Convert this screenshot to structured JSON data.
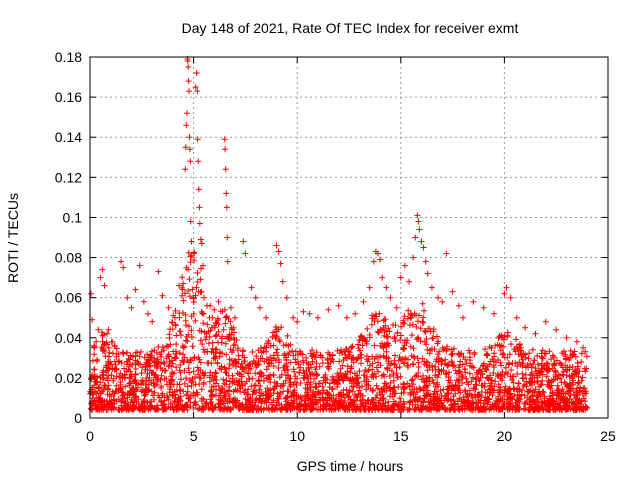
{
  "chart_data": {
    "type": "scatter",
    "title": "Day 148 of 2021, Rate Of TEC Index for receiver exmt",
    "xlabel": "GPS time / hours",
    "ylabel": "ROTI / TECUs",
    "xlim": [
      0,
      25
    ],
    "ylim": [
      0,
      0.18
    ],
    "x_ticks": [
      0,
      5,
      10,
      15,
      20,
      25
    ],
    "x_tick_labels": [
      "0",
      "5",
      "10",
      "15",
      "20",
      "25"
    ],
    "y_ticks": [
      0,
      0.02,
      0.04,
      0.06,
      0.08,
      0.1,
      0.12,
      0.14,
      0.16,
      0.18
    ],
    "y_tick_labels": [
      "0",
      "0.02",
      "0.04",
      "0.06",
      "0.08",
      "0.1",
      "0.12",
      "0.14",
      "0.16",
      "0.18"
    ],
    "grid": true,
    "marker": "+",
    "series": [
      {
        "name": "ROTI",
        "color": "#ff0000",
        "points": [
          [
            0.05,
            0.062
          ],
          [
            0.1,
            0.049
          ],
          [
            0.2,
            0.035
          ],
          [
            0.3,
            0.038
          ],
          [
            0.4,
            0.044
          ],
          [
            0.5,
            0.07
          ],
          [
            0.6,
            0.074
          ],
          [
            0.7,
            0.066
          ],
          [
            0.9,
            0.044
          ],
          [
            1.2,
            0.036
          ],
          [
            1.5,
            0.078
          ],
          [
            1.6,
            0.075
          ],
          [
            1.8,
            0.06
          ],
          [
            2.0,
            0.055
          ],
          [
            2.2,
            0.064
          ],
          [
            2.4,
            0.076
          ],
          [
            2.6,
            0.058
          ],
          [
            2.8,
            0.052
          ],
          [
            3.0,
            0.048
          ],
          [
            3.3,
            0.073
          ],
          [
            3.5,
            0.061
          ],
          [
            3.8,
            0.055
          ],
          [
            4.1,
            0.05
          ],
          [
            4.3,
            0.066
          ],
          [
            4.5,
            0.067
          ],
          [
            4.6,
            0.124
          ],
          [
            4.62,
            0.135
          ],
          [
            4.65,
            0.146
          ],
          [
            4.68,
            0.152
          ],
          [
            4.7,
            0.179
          ],
          [
            4.72,
            0.178
          ],
          [
            4.74,
            0.175
          ],
          [
            4.76,
            0.168
          ],
          [
            4.78,
            0.163
          ],
          [
            4.8,
            0.14
          ],
          [
            4.82,
            0.134
          ],
          [
            4.84,
            0.128
          ],
          [
            4.86,
            0.098
          ],
          [
            4.9,
            0.088
          ],
          [
            5.0,
            0.06
          ],
          [
            5.1,
            0.165
          ],
          [
            5.15,
            0.172
          ],
          [
            5.18,
            0.163
          ],
          [
            5.2,
            0.139
          ],
          [
            5.22,
            0.128
          ],
          [
            5.25,
            0.114
          ],
          [
            5.28,
            0.105
          ],
          [
            5.3,
            0.097
          ],
          [
            5.35,
            0.089
          ],
          [
            5.4,
            0.087
          ],
          [
            5.45,
            0.076
          ],
          [
            5.5,
            0.06
          ],
          [
            5.8,
            0.056
          ],
          [
            6.0,
            0.054
          ],
          [
            6.2,
            0.058
          ],
          [
            6.5,
            0.139
          ],
          [
            6.52,
            0.134
          ],
          [
            6.55,
            0.124
          ],
          [
            6.58,
            0.112
          ],
          [
            6.6,
            0.105
          ],
          [
            6.62,
            0.09
          ],
          [
            6.65,
            0.078
          ],
          [
            6.8,
            0.055
          ],
          [
            7.0,
            0.05
          ],
          [
            7.4,
            0.088
          ],
          [
            7.5,
            0.082
          ],
          [
            7.8,
            0.065
          ],
          [
            8.0,
            0.06
          ],
          [
            8.2,
            0.055
          ],
          [
            8.5,
            0.05
          ],
          [
            9.0,
            0.086
          ],
          [
            9.1,
            0.083
          ],
          [
            9.2,
            0.077
          ],
          [
            9.3,
            0.068
          ],
          [
            9.5,
            0.06
          ],
          [
            9.8,
            0.05
          ],
          [
            10.0,
            0.048
          ],
          [
            10.3,
            0.053
          ],
          [
            10.6,
            0.052
          ],
          [
            11.0,
            0.05
          ],
          [
            11.5,
            0.054
          ],
          [
            12.0,
            0.056
          ],
          [
            12.4,
            0.05
          ],
          [
            12.8,
            0.052
          ],
          [
            13.2,
            0.058
          ],
          [
            13.5,
            0.065
          ],
          [
            13.7,
            0.078
          ],
          [
            13.8,
            0.083
          ],
          [
            13.9,
            0.082
          ],
          [
            14.0,
            0.079
          ],
          [
            14.1,
            0.07
          ],
          [
            14.3,
            0.065
          ],
          [
            14.5,
            0.06
          ],
          [
            14.8,
            0.055
          ],
          [
            15.0,
            0.07
          ],
          [
            15.2,
            0.076
          ],
          [
            15.4,
            0.068
          ],
          [
            15.6,
            0.08
          ],
          [
            15.7,
            0.09
          ],
          [
            15.8,
            0.101
          ],
          [
            15.85,
            0.098
          ],
          [
            15.9,
            0.094
          ],
          [
            16.0,
            0.088
          ],
          [
            16.1,
            0.085
          ],
          [
            16.2,
            0.078
          ],
          [
            16.3,
            0.072
          ],
          [
            16.5,
            0.065
          ],
          [
            16.8,
            0.06
          ],
          [
            17.0,
            0.058
          ],
          [
            17.2,
            0.082
          ],
          [
            17.5,
            0.063
          ],
          [
            17.8,
            0.056
          ],
          [
            18.0,
            0.05
          ],
          [
            18.5,
            0.058
          ],
          [
            19.0,
            0.055
          ],
          [
            19.5,
            0.052
          ],
          [
            20.0,
            0.062
          ],
          [
            20.1,
            0.065
          ],
          [
            20.3,
            0.06
          ],
          [
            20.6,
            0.05
          ],
          [
            21.0,
            0.045
          ],
          [
            21.5,
            0.042
          ],
          [
            22.0,
            0.048
          ],
          [
            22.5,
            0.044
          ],
          [
            23.0,
            0.04
          ],
          [
            23.5,
            0.038
          ],
          [
            23.8,
            0.035
          ],
          [
            23.9,
            0.033
          ]
        ]
      }
    ]
  }
}
